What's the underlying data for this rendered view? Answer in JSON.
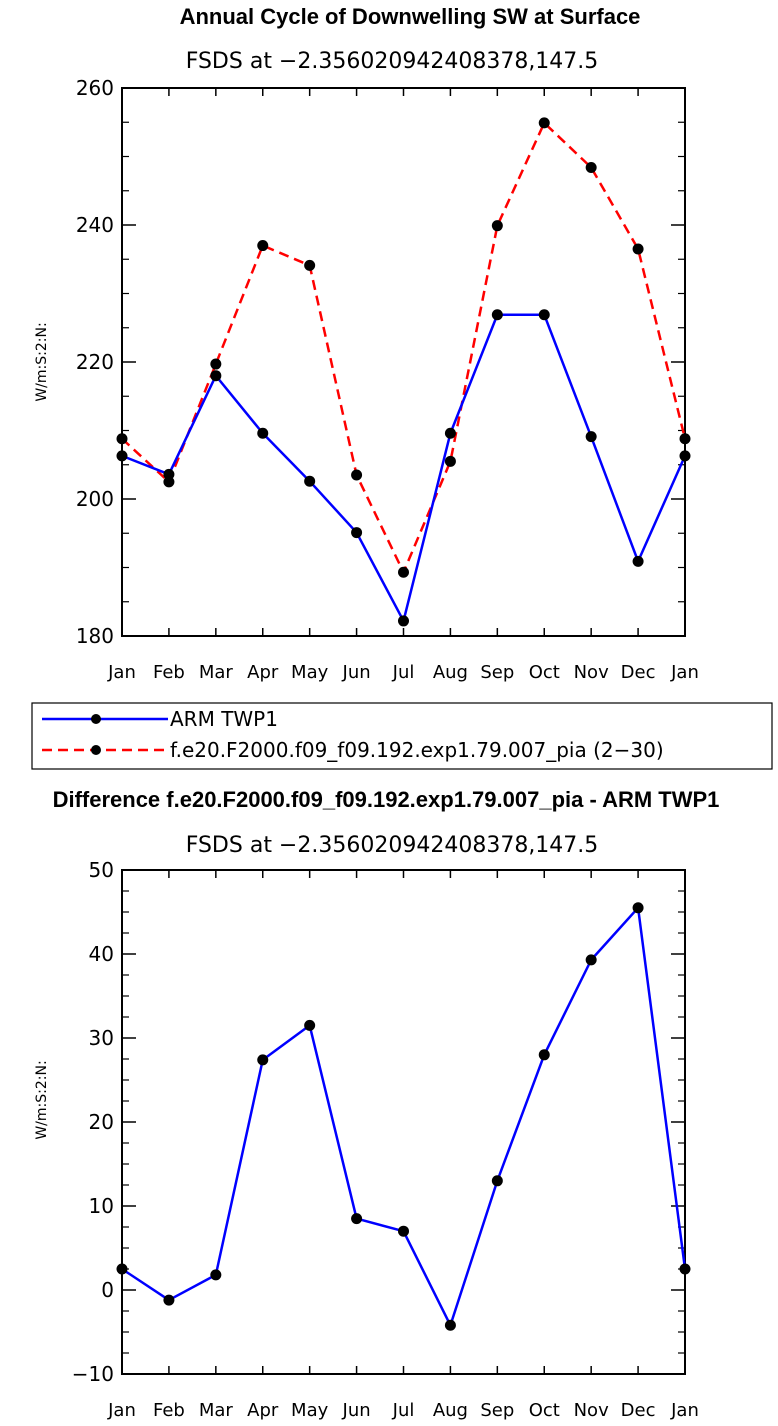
{
  "chart_data": [
    {
      "type": "line",
      "title": "Annual Cycle of Downwelling SW at Surface",
      "subtitle": "FSDS at −2.356020942408378,147.5",
      "ylabel": "W/m:S:2:N:",
      "categories": [
        "Jan",
        "Feb",
        "Mar",
        "Apr",
        "May",
        "Jun",
        "Jul",
        "Aug",
        "Sep",
        "Oct",
        "Nov",
        "Dec",
        "Jan"
      ],
      "ylim": [
        180,
        260
      ],
      "yticks": [
        "180",
        "200",
        "220",
        "240",
        "260"
      ],
      "series": [
        {
          "name": "ARM TWP1",
          "color": "#0000ff",
          "dash": "solid",
          "values": [
            206.3,
            203.6,
            218.0,
            209.6,
            202.6,
            195.1,
            182.2,
            209.6,
            226.9,
            226.9,
            209.1,
            190.9,
            206.3
          ]
        },
        {
          "name": "f.e20.F2000.f09_f09.192.exp1.79.007_pia (2−30)",
          "color": "#ff0000",
          "dash": "dashed",
          "values": [
            208.8,
            202.5,
            219.7,
            237.0,
            234.1,
            203.5,
            189.3,
            205.5,
            239.9,
            254.9,
            248.4,
            236.5,
            208.8
          ]
        }
      ]
    },
    {
      "type": "line",
      "title": "Difference f.e20.F2000.f09_f09.192.exp1.79.007_pia - ARM TWP1",
      "subtitle": "FSDS at −2.356020942408378,147.5",
      "ylabel": "W/m:S:2:N:",
      "categories": [
        "Jan",
        "Feb",
        "Mar",
        "Apr",
        "May",
        "Jun",
        "Jul",
        "Aug",
        "Sep",
        "Oct",
        "Nov",
        "Dec",
        "Jan"
      ],
      "ylim": [
        -10,
        50
      ],
      "yticks": [
        "−10",
        "0",
        "10",
        "20",
        "30",
        "40",
        "50"
      ],
      "series": [
        {
          "name": "Difference",
          "color": "#0000ff",
          "dash": "solid",
          "values": [
            2.5,
            -1.2,
            1.8,
            27.4,
            31.5,
            8.5,
            7.0,
            -4.2,
            13.0,
            28.0,
            39.3,
            45.5,
            2.5
          ]
        }
      ]
    }
  ]
}
